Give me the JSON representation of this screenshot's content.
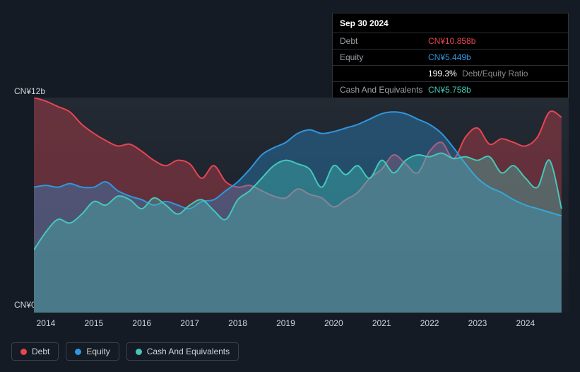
{
  "tooltip": {
    "date": "Sep 30 2024",
    "rows": [
      {
        "label": "Debt",
        "value": "CN¥10.858b",
        "color": "#e64552"
      },
      {
        "label": "Equity",
        "value": "CN¥5.449b",
        "color": "#2f97e0"
      },
      {
        "label": "",
        "value": "199.3%",
        "sub": "Debt/Equity Ratio",
        "color": "#ffffff"
      },
      {
        "label": "Cash And Equivalents",
        "value": "CN¥5.758b",
        "color": "#44c8b9"
      }
    ]
  },
  "chart": {
    "type": "area",
    "background_gradient": [
      "#242a33",
      "#171d26"
    ],
    "ylim": [
      0,
      12
    ],
    "y_ticks": [
      {
        "v": 12,
        "label": "CN¥12b"
      },
      {
        "v": 0,
        "label": "CN¥0"
      }
    ],
    "x_years": [
      2014,
      2015,
      2016,
      2017,
      2018,
      2019,
      2020,
      2021,
      2022,
      2023,
      2024
    ],
    "x_range": [
      2013.75,
      2024.9
    ],
    "axis_label_color": "#d0d3d8",
    "axis_label_fontsize": 12,
    "line_width": 2,
    "fill_opacity": 0.35,
    "series": [
      {
        "name": "Debt",
        "color": "#e64552",
        "data": [
          [
            2013.75,
            12.0
          ],
          [
            2014.0,
            11.8
          ],
          [
            2014.25,
            11.5
          ],
          [
            2014.5,
            11.2
          ],
          [
            2014.75,
            10.5
          ],
          [
            2015.0,
            10.0
          ],
          [
            2015.25,
            9.6
          ],
          [
            2015.5,
            9.3
          ],
          [
            2015.75,
            9.4
          ],
          [
            2016.0,
            9.0
          ],
          [
            2016.25,
            8.5
          ],
          [
            2016.5,
            8.2
          ],
          [
            2016.75,
            8.5
          ],
          [
            2017.0,
            8.3
          ],
          [
            2017.25,
            7.5
          ],
          [
            2017.5,
            8.2
          ],
          [
            2017.75,
            7.3
          ],
          [
            2018.0,
            7.0
          ],
          [
            2018.25,
            7.1
          ],
          [
            2018.5,
            6.8
          ],
          [
            2018.75,
            6.5
          ],
          [
            2019.0,
            6.4
          ],
          [
            2019.25,
            6.9
          ],
          [
            2019.5,
            6.6
          ],
          [
            2019.75,
            6.4
          ],
          [
            2020.0,
            5.9
          ],
          [
            2020.25,
            6.3
          ],
          [
            2020.5,
            6.7
          ],
          [
            2020.75,
            7.5
          ],
          [
            2021.0,
            8.0
          ],
          [
            2021.25,
            8.8
          ],
          [
            2021.5,
            8.3
          ],
          [
            2021.75,
            7.8
          ],
          [
            2022.0,
            9.0
          ],
          [
            2022.25,
            9.5
          ],
          [
            2022.5,
            8.6
          ],
          [
            2022.75,
            9.8
          ],
          [
            2023.0,
            10.3
          ],
          [
            2023.25,
            9.4
          ],
          [
            2023.5,
            9.7
          ],
          [
            2023.75,
            9.5
          ],
          [
            2024.0,
            9.3
          ],
          [
            2024.25,
            9.8
          ],
          [
            2024.5,
            11.2
          ],
          [
            2024.75,
            10.9
          ]
        ]
      },
      {
        "name": "Equity",
        "color": "#2f97e0",
        "data": [
          [
            2013.75,
            7.0
          ],
          [
            2014.0,
            7.1
          ],
          [
            2014.25,
            7.0
          ],
          [
            2014.5,
            7.2
          ],
          [
            2014.75,
            7.0
          ],
          [
            2015.0,
            7.0
          ],
          [
            2015.25,
            7.3
          ],
          [
            2015.5,
            6.8
          ],
          [
            2015.75,
            6.5
          ],
          [
            2016.0,
            6.3
          ],
          [
            2016.25,
            6.0
          ],
          [
            2016.5,
            6.2
          ],
          [
            2016.75,
            6.0
          ],
          [
            2017.0,
            5.8
          ],
          [
            2017.25,
            6.2
          ],
          [
            2017.5,
            6.3
          ],
          [
            2017.75,
            6.8
          ],
          [
            2018.0,
            7.3
          ],
          [
            2018.25,
            8.0
          ],
          [
            2018.5,
            8.8
          ],
          [
            2018.75,
            9.2
          ],
          [
            2019.0,
            9.5
          ],
          [
            2019.25,
            10.0
          ],
          [
            2019.5,
            10.2
          ],
          [
            2019.75,
            10.0
          ],
          [
            2020.0,
            10.1
          ],
          [
            2020.25,
            10.3
          ],
          [
            2020.5,
            10.5
          ],
          [
            2020.75,
            10.8
          ],
          [
            2021.0,
            11.1
          ],
          [
            2021.25,
            11.2
          ],
          [
            2021.5,
            11.1
          ],
          [
            2021.75,
            10.8
          ],
          [
            2022.0,
            10.5
          ],
          [
            2022.25,
            10.0
          ],
          [
            2022.5,
            9.2
          ],
          [
            2022.75,
            8.3
          ],
          [
            2023.0,
            7.5
          ],
          [
            2023.25,
            7.0
          ],
          [
            2023.5,
            6.7
          ],
          [
            2023.75,
            6.3
          ],
          [
            2024.0,
            6.0
          ],
          [
            2024.25,
            5.8
          ],
          [
            2024.5,
            5.6
          ],
          [
            2024.75,
            5.4
          ]
        ]
      },
      {
        "name": "Cash And Equivalents",
        "color": "#44c8b9",
        "data": [
          [
            2013.75,
            3.5
          ],
          [
            2014.0,
            4.5
          ],
          [
            2014.25,
            5.2
          ],
          [
            2014.5,
            5.0
          ],
          [
            2014.75,
            5.5
          ],
          [
            2015.0,
            6.2
          ],
          [
            2015.25,
            6.0
          ],
          [
            2015.5,
            6.5
          ],
          [
            2015.75,
            6.3
          ],
          [
            2016.0,
            5.8
          ],
          [
            2016.25,
            6.4
          ],
          [
            2016.5,
            6.0
          ],
          [
            2016.75,
            5.5
          ],
          [
            2017.0,
            6.0
          ],
          [
            2017.25,
            6.3
          ],
          [
            2017.5,
            5.7
          ],
          [
            2017.75,
            5.2
          ],
          [
            2018.0,
            6.3
          ],
          [
            2018.25,
            6.8
          ],
          [
            2018.5,
            7.5
          ],
          [
            2018.75,
            8.2
          ],
          [
            2019.0,
            8.5
          ],
          [
            2019.25,
            8.3
          ],
          [
            2019.5,
            8.0
          ],
          [
            2019.75,
            7.0
          ],
          [
            2020.0,
            8.2
          ],
          [
            2020.25,
            7.7
          ],
          [
            2020.5,
            8.2
          ],
          [
            2020.75,
            7.5
          ],
          [
            2021.0,
            8.5
          ],
          [
            2021.25,
            7.8
          ],
          [
            2021.5,
            8.5
          ],
          [
            2021.75,
            8.8
          ],
          [
            2022.0,
            8.7
          ],
          [
            2022.25,
            8.9
          ],
          [
            2022.5,
            8.6
          ],
          [
            2022.75,
            8.7
          ],
          [
            2023.0,
            8.5
          ],
          [
            2023.25,
            8.7
          ],
          [
            2023.5,
            7.8
          ],
          [
            2023.75,
            8.2
          ],
          [
            2024.0,
            7.5
          ],
          [
            2024.25,
            7.0
          ],
          [
            2024.5,
            8.5
          ],
          [
            2024.75,
            5.8
          ]
        ]
      }
    ]
  },
  "legend": {
    "border_color": "#3a3f48",
    "text_color": "#d0d3d8",
    "items": [
      {
        "label": "Debt",
        "color": "#e64552"
      },
      {
        "label": "Equity",
        "color": "#2f97e0"
      },
      {
        "label": "Cash And Equivalents",
        "color": "#44c8b9"
      }
    ]
  }
}
